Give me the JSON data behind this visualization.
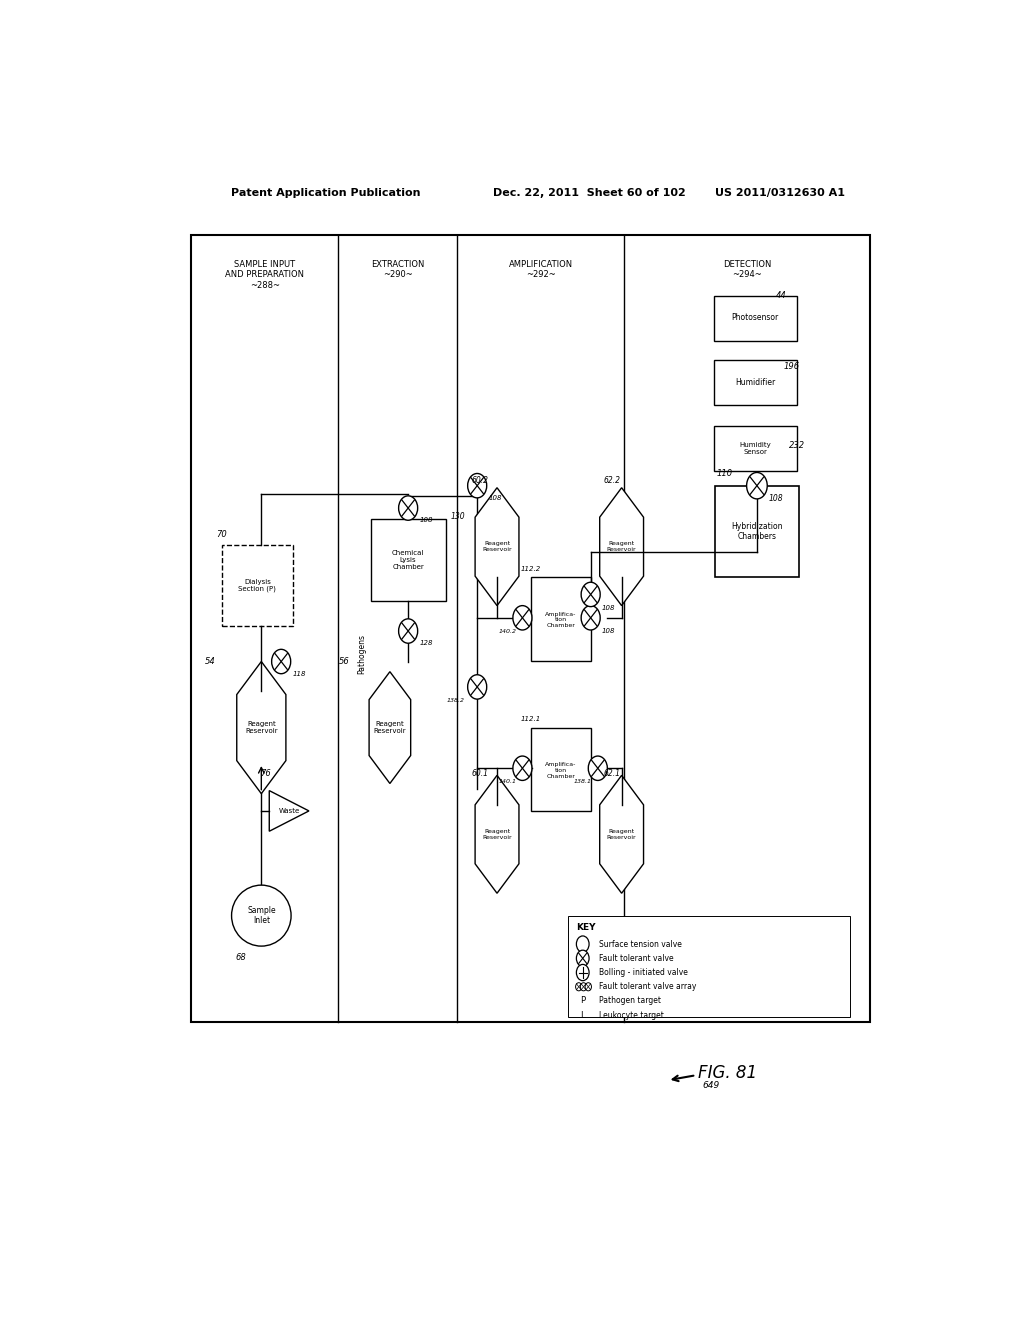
{
  "bg_color": "#ffffff",
  "header_text_left": "Patent Application Publication",
  "header_text_mid": "Dec. 22, 2011  Sheet 60 of 102",
  "header_text_right": "US 2011/0312630 A1",
  "fig_label": "FIG. 81",
  "fig_ref": "649"
}
